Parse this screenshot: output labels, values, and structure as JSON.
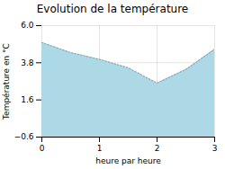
{
  "chart_data": {
    "type": "area",
    "title": "Evolution de la température",
    "xlabel": "heure par heure",
    "ylabel": "Température en °C",
    "x": [
      0,
      0.5,
      1,
      1.5,
      2,
      2.5,
      3
    ],
    "values": [
      5.0,
      4.4,
      4.0,
      3.5,
      2.6,
      3.4,
      4.6
    ],
    "color": "#add8e6",
    "line_style": "dotted",
    "xlim": [
      0,
      3
    ],
    "ylim": [
      -0.6,
      6.0
    ],
    "xticks": [
      0,
      1,
      2,
      3
    ],
    "yticks": [
      -0.6,
      1.6,
      3.8,
      {
        "value": 6.0,
        "label": "6.0"
      }
    ],
    "grid": true
  }
}
